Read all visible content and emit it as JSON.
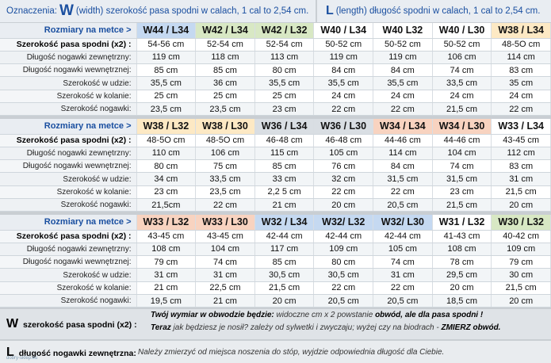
{
  "header": {
    "left_prefix": "Oznaczenia:",
    "left_letter": "W",
    "left_text": "(width) szerokość pasa spodni w calach, 1 cal to 2,54 cm.",
    "right_letter": "L",
    "right_text": "(length) długość spodni w calach, 1 cal to 2,54 cm."
  },
  "row_labels": [
    "Szerokość pasa spodni (x2) :",
    "Długość nogawki zewnętrzny:",
    "Długość nogawki wewnętrznej:",
    "Szerokość w udzie:",
    "Szerokość w kolanie:",
    "Szerokość nogawki:"
  ],
  "tables": [
    {
      "header_label": "Rozmiary na metce >",
      "sizes": [
        "W44 / L34",
        "W42 / L34",
        "W42 / L32",
        "W40 / L34",
        "W40 L32",
        "W40 / L30",
        "W38 / L34"
      ],
      "size_colors": [
        "#c5d9f1",
        "#d8e8c4",
        "#d8e8c4",
        "#ffffff",
        "#ffffff",
        "#ffffff",
        "#fde9c4"
      ],
      "rows": [
        [
          "54-56 cm",
          "52-54 cm",
          "52-54 cm",
          "50-52 cm",
          "50-52 cm",
          "50-52 cm",
          "48-5O cm"
        ],
        [
          "119 cm",
          "118 cm",
          "113 cm",
          "119 cm",
          "119 cm",
          "106 cm",
          "114 cm"
        ],
        [
          "85 cm",
          "85 cm",
          "80 cm",
          "84 cm",
          "84 cm",
          "74 cm",
          "83 cm"
        ],
        [
          "35,5 cm",
          "36 cm",
          "35,5 cm",
          "35,5 cm",
          "35,5 cm",
          "33,5 cm",
          "35 cm"
        ],
        [
          "25 cm",
          "25 cm",
          "25 cm",
          "24 cm",
          "24 cm",
          "24 cm",
          "24 cm"
        ],
        [
          "23,5 cm",
          "23,5 cm",
          "23 cm",
          "22 cm",
          "22 cm",
          "21,5 cm",
          "22 cm"
        ]
      ]
    },
    {
      "header_label": "Rozmiary na metce >",
      "sizes": [
        "W38 / L32",
        "W38 / L30",
        "W36 / L34",
        "W36 / L30",
        "W34 / L34",
        "W34 / L30",
        "W33 / L34"
      ],
      "size_colors": [
        "#fde9c4",
        "#fde9c4",
        "#d9dee3",
        "#d9dee3",
        "#f8d3c0",
        "#f8d3c0",
        "#ffffff"
      ],
      "rows": [
        [
          "48-5O cm",
          "48-5O cm",
          "46-48 cm",
          "46-48 cm",
          "44-46 cm",
          "44-46 cm",
          "43-45 cm"
        ],
        [
          "110 cm",
          "106 cm",
          "115 cm",
          "105 cm",
          "114 cm",
          "104 cm",
          "112 cm"
        ],
        [
          "80 cm",
          "75 cm",
          "85 cm",
          "76 cm",
          "84 cm",
          "74 cm",
          "83 cm"
        ],
        [
          "34 cm",
          "33,5 cm",
          "33 cm",
          "32 cm",
          "31,5 cm",
          "31,5 cm",
          "31 cm"
        ],
        [
          "23 cm",
          "23,5 cm",
          "2,2 5 cm",
          "22 cm",
          "22 cm",
          "23 cm",
          "21,5 cm"
        ],
        [
          "21,5cm",
          "22 cm",
          "21 cm",
          "20 cm",
          "20,5 cm",
          "21,5 cm",
          "20 cm"
        ]
      ]
    },
    {
      "header_label": "Rozmiary na metce >",
      "sizes": [
        "W33 / L32",
        "W33 / L30",
        "W32 / L34",
        "W32/ L32",
        "W32/ L30",
        "W31 / L32",
        "W30 / L32"
      ],
      "size_colors": [
        "#f8d3c0",
        "#f8d3c0",
        "#c5d9f1",
        "#c5d9f1",
        "#c5d9f1",
        "#ffffff",
        "#d8e8c4"
      ],
      "rows": [
        [
          "43-45 cm",
          "43-45 cm",
          "42-44 cm",
          "42-44 cm",
          "42-44 cm",
          "41-43 cm",
          "40-42 cm"
        ],
        [
          "108 cm",
          "104 cm",
          "117 cm",
          "109 cm",
          "105 cm",
          "108 cm",
          "109 cm"
        ],
        [
          "79 cm",
          "74 cm",
          "85 cm",
          "80 cm",
          "74 cm",
          "78 cm",
          "79 cm"
        ],
        [
          "31 cm",
          "31 cm",
          "30,5 cm",
          "30,5 cm",
          "31 cm",
          "29,5 cm",
          "30 cm"
        ],
        [
          "21 cm",
          "22,5 cm",
          "21,5 cm",
          "22 cm",
          "22 cm",
          "20 cm",
          "21,5 cm"
        ],
        [
          "19,5 cm",
          "21 cm",
          "20 cm",
          "20,5 cm",
          "20,5 cm",
          "18,5 cm",
          "20 cm"
        ]
      ]
    }
  ],
  "footer": {
    "w_letter": "W",
    "w_label": "szerokość pasa spodni (x2) :",
    "w_text_1a": "Twój wymiar w obwodzie będzie:",
    "w_text_1b": "widoczne cm x 2 powstanie",
    "w_text_1c": "obwód, ale dla pasa spodni !",
    "w_text_2a": "Teraz",
    "w_text_2b": "jak będziesz je nosił? zależy od sylwetki i zwyczaju; wyżej czy na biodrach -",
    "w_text_2c": "ZMIERZ obwód.",
    "l_letter": "L",
    "l_label": "długość nogawki zewnętrzna:",
    "l_text": "Należy zmierzyć od miejsca noszenia do stóp, wyjdzie odpowiednia długość dla Ciebie."
  },
  "watermark": "dobry-sklep.eu"
}
